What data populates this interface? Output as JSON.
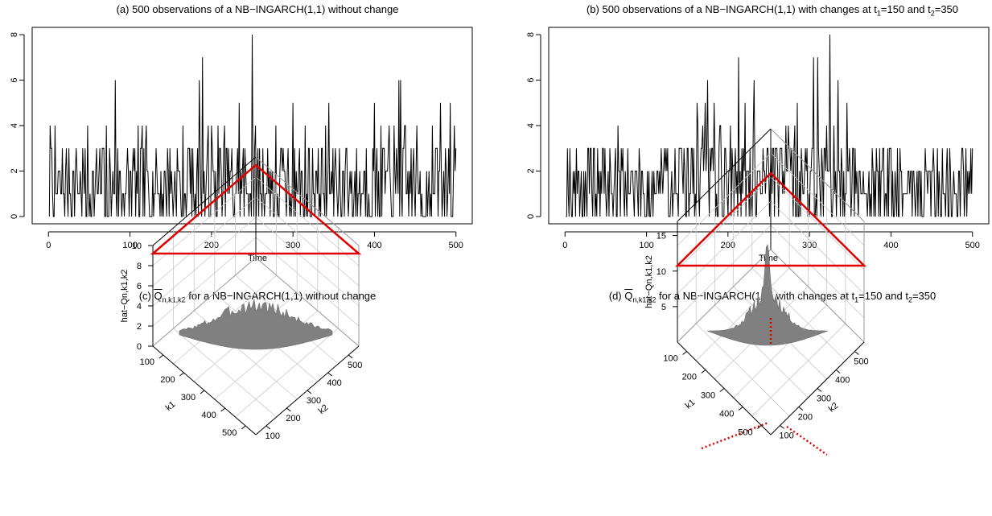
{
  "panels": {
    "a": {
      "title": "(a) 500 observations of a NB−INGARCH(1,1) without change",
      "xlabel": "Time"
    },
    "b": {
      "title_prefix": "(b) 500 observations of a NB−INGARCH(1,1) with changes at t",
      "title_sub1": "1",
      "title_mid": "=150 and t",
      "title_sub2": "2",
      "title_suffix": "=350",
      "xlabel": "Time"
    },
    "c": {
      "title_prefix": "(c) ",
      "title_q": "Q",
      "title_q_sub": "n,k1,k2",
      "title_suffix": " for a NB−INGARCH(1,1) without change",
      "zlabel": "hat−Qn,k1,k2",
      "xlabel": "k1",
      "ylabel": "k2"
    },
    "d": {
      "title_prefix": "(d) ",
      "title_q": "Q",
      "title_q_sub": "n,k1,k2",
      "title_mid": " for a NB−INGARCH(1,1) with changes at t",
      "title_sub1": "1",
      "title_mid2": "=150 and t",
      "title_sub2": "2",
      "title_suffix": "=350",
      "zlabel": "hat−Qn,k1,k2",
      "xlabel": "k1",
      "ylabel": "k2"
    }
  },
  "chart_data": [
    {
      "type": "line",
      "panel": "a",
      "xlabel": "Time",
      "xlim": [
        0,
        500
      ],
      "ylim": [
        0,
        8
      ],
      "x_ticks": [
        0,
        100,
        200,
        300,
        400,
        500
      ],
      "y_ticks": [
        0,
        2,
        4,
        6,
        8
      ],
      "peaks": [
        {
          "x": 82,
          "y": 6
        },
        {
          "x": 185,
          "y": 6
        },
        {
          "x": 189,
          "y": 7
        },
        {
          "x": 250,
          "y": 8
        },
        {
          "x": 430,
          "y": 6
        },
        {
          "x": 432,
          "y": 6
        },
        {
          "x": 493,
          "y": 5
        },
        {
          "x": 481,
          "y": 5
        },
        {
          "x": 234,
          "y": 5
        },
        {
          "x": 300,
          "y": 5
        },
        {
          "x": 344,
          "y": 5
        },
        {
          "x": 400,
          "y": 5
        }
      ]
    },
    {
      "type": "line",
      "panel": "b",
      "xlabel": "Time",
      "xlim": [
        0,
        500
      ],
      "ylim": [
        0,
        8
      ],
      "x_ticks": [
        0,
        100,
        200,
        300,
        400,
        500
      ],
      "y_ticks": [
        0,
        2,
        4,
        6,
        8
      ],
      "change_points": [
        150,
        350
      ],
      "peaks": [
        {
          "x": 213,
          "y": 7
        },
        {
          "x": 305,
          "y": 7
        },
        {
          "x": 310,
          "y": 7
        },
        {
          "x": 325,
          "y": 8
        },
        {
          "x": 162,
          "y": 5
        },
        {
          "x": 175,
          "y": 6
        },
        {
          "x": 232,
          "y": 6
        },
        {
          "x": 335,
          "y": 6
        },
        {
          "x": 346,
          "y": 5
        }
      ]
    },
    {
      "type": "surface",
      "panel": "c",
      "zlabel": "hat−Qn,k1,k2",
      "xlabel": "k1",
      "ylabel": "k2",
      "z_ticks": [
        0,
        2,
        4,
        6,
        8,
        10
      ],
      "k_ticks": [
        100,
        200,
        300,
        400,
        500
      ],
      "threshold_z": 9
    },
    {
      "type": "surface",
      "panel": "d",
      "zlabel": "hat−Qn,k1,k2",
      "xlabel": "k1",
      "ylabel": "k2",
      "z_ticks": [
        5,
        10,
        15
      ],
      "k_ticks": [
        100,
        200,
        300,
        400,
        500
      ],
      "threshold_z": 9,
      "max_at": {
        "k1": 150,
        "k2": 350
      }
    }
  ],
  "colors": {
    "line": "#000000",
    "surface": "#808080",
    "threshold": "#e00000",
    "grid": "#c8c8c8"
  }
}
